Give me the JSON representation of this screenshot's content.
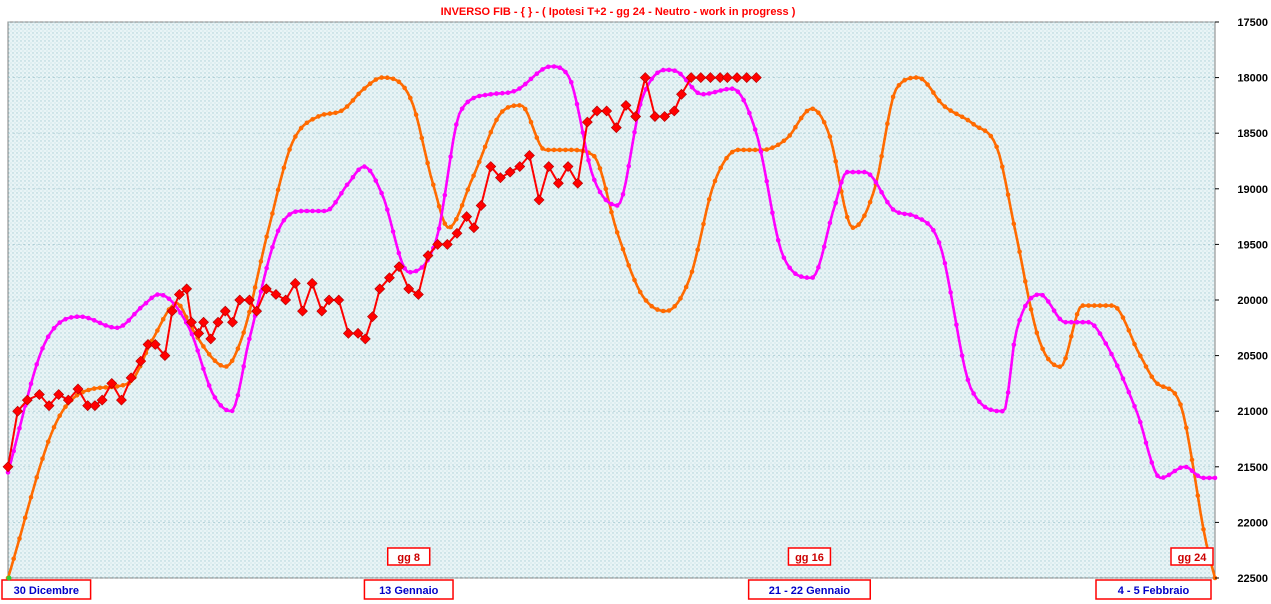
{
  "chart_data": {
    "type": "line",
    "title": "INVERSO FIB  - { } - ( Ipotesi T+2 - gg 24  - Neutro - work in progress )",
    "y_axis": {
      "position": "right",
      "inverted": true,
      "ylim": [
        17500,
        22500
      ],
      "ticks": [
        "17500",
        "18000",
        "18500",
        "19000",
        "19500",
        "20000",
        "20500",
        "21000",
        "21500",
        "22000",
        "22500"
      ]
    },
    "x_range": [
      0,
      100
    ],
    "colors": {
      "background": "#d8ecf0",
      "grid": "#9fc4cc",
      "title": "#ff0000",
      "date_label": "#0000c8",
      "gg_label": "#cc0000",
      "box_border": "#ff0000"
    },
    "date_labels": [
      {
        "text": "30 Dicembre",
        "x": 0
      },
      {
        "text": "13  Gennaio",
        "x": 33.2
      },
      {
        "text": "21 - 22  Gennaio",
        "x": 66.4
      },
      {
        "text": "4 - 5  Febbraio",
        "x": 100
      }
    ],
    "gg_labels": [
      {
        "text": "gg 8",
        "x": 33.2
      },
      {
        "text": "gg 16",
        "x": 66.4
      },
      {
        "text": "gg 24",
        "x": 100
      }
    ],
    "series": [
      {
        "color": "#ff6a00",
        "marker": "dot",
        "x": [
          0,
          4,
          7,
          10,
          12,
          14,
          15.2,
          17,
          18,
          19.5,
          21.5,
          23.5,
          25.7,
          27.6,
          29.5,
          31,
          33.4,
          35.2,
          36.5,
          38.5,
          41,
          42.5,
          44.5,
          46.5,
          48.5,
          50.5,
          52.5,
          54.5,
          56.5,
          58.5,
          60.5,
          62.5,
          64.5,
          66.6,
          68,
          70,
          71.8,
          73.6,
          75.4,
          77.5,
          80,
          82,
          83.4,
          85.4,
          87.2,
          89,
          91.5,
          93.8,
          95.2,
          97,
          99.3,
          100
        ],
        "values": [
          22500,
          21100,
          20800,
          20750,
          20350,
          20030,
          20250,
          20530,
          20600,
          20300,
          19400,
          18600,
          18350,
          18300,
          18100,
          18000,
          18200,
          18950,
          19350,
          18900,
          18300,
          18250,
          18650,
          18650,
          18700,
          19400,
          19950,
          20100,
          19800,
          18950,
          18650,
          18650,
          18550,
          18280,
          18500,
          19350,
          19000,
          18100,
          18000,
          18250,
          18420,
          18650,
          19350,
          20350,
          20600,
          20050,
          20050,
          20500,
          20750,
          20900,
          22200,
          22500
        ]
      },
      {
        "color": "#ff00ff",
        "marker": "dot",
        "x": [
          0,
          3,
          6,
          9,
          11.2,
          12.5,
          15,
          17,
          18.5,
          20,
          22.5,
          24.5,
          26.3,
          28.2,
          29.5,
          31,
          33.2,
          35.5,
          37.5,
          40,
          42,
          45,
          46.5,
          48.5,
          50.5,
          52.5,
          54.5,
          55.5,
          57.5,
          60,
          62,
          64.2,
          66.6,
          68.5,
          69.5,
          71,
          73.5,
          75.2,
          77.2,
          79.8,
          82.5,
          83.5,
          85.5,
          87.6,
          89.5,
          91,
          93.5,
          95.5,
          97.5,
          99,
          100
        ],
        "values": [
          21550,
          20400,
          20150,
          20250,
          20050,
          19950,
          20250,
          20850,
          21000,
          20350,
          19350,
          19200,
          19200,
          18950,
          18800,
          19050,
          19750,
          19450,
          18300,
          18150,
          18120,
          17900,
          18000,
          18900,
          19150,
          18200,
          17930,
          17950,
          18150,
          18100,
          18500,
          19600,
          19800,
          19150,
          18850,
          18850,
          19200,
          19250,
          19500,
          20800,
          21000,
          20300,
          19950,
          20200,
          20200,
          20400,
          21000,
          21600,
          21500,
          21600,
          21600
        ]
      },
      {
        "color": "#ff0000",
        "marker": "diamond",
        "x": [
          0,
          0.8,
          1.6,
          2.6,
          3.4,
          4.2,
          5.0,
          5.8,
          6.6,
          7.2,
          7.8,
          8.6,
          9.4,
          10.2,
          11,
          11.6,
          12.2,
          13,
          13.6,
          14.2,
          14.8,
          15.2,
          15.8,
          16.2,
          16.8,
          17.4,
          18,
          18.6,
          19.2,
          20,
          20.6,
          21.4,
          22.2,
          23,
          23.8,
          24.4,
          25.2,
          26,
          26.6,
          27.4,
          28.2,
          29,
          29.6,
          30.2,
          30.8,
          31.6,
          32.4,
          33.2,
          34,
          34.8,
          35.6,
          36.4,
          37.2,
          38,
          38.6,
          39.2,
          40,
          40.8,
          41.6,
          42.4,
          43.2,
          44,
          44.8,
          45.6,
          46.4,
          47.2,
          48,
          48.8,
          49.6,
          50.4,
          51.2,
          52,
          52.8,
          53.6,
          54.4,
          55.2,
          55.8,
          56.6,
          57.4,
          58.2,
          59,
          59.6,
          60.4,
          61.2,
          62
        ],
        "values": [
          21500,
          21000,
          20900,
          20850,
          20950,
          20850,
          20900,
          20800,
          20950,
          20950,
          20900,
          20750,
          20900,
          20700,
          20550,
          20400,
          20400,
          20500,
          20100,
          19950,
          19900,
          20200,
          20300,
          20200,
          20350,
          20200,
          20100,
          20200,
          20000,
          20000,
          20100,
          19900,
          19950,
          20000,
          19850,
          20100,
          19850,
          20100,
          20000,
          20000,
          20300,
          20300,
          20350,
          20150,
          19900,
          19800,
          19700,
          19900,
          19950,
          19600,
          19500,
          19500,
          19400,
          19250,
          19350,
          19150,
          18800,
          18900,
          18850,
          18800,
          18700,
          19100,
          18800,
          18950,
          18800,
          18950,
          18400,
          18300,
          18300,
          18450,
          18250,
          18350,
          18000,
          18350,
          18350,
          18300,
          18150,
          18000,
          18000,
          18000,
          18000,
          18000,
          18000,
          18000,
          18000
        ]
      }
    ]
  }
}
